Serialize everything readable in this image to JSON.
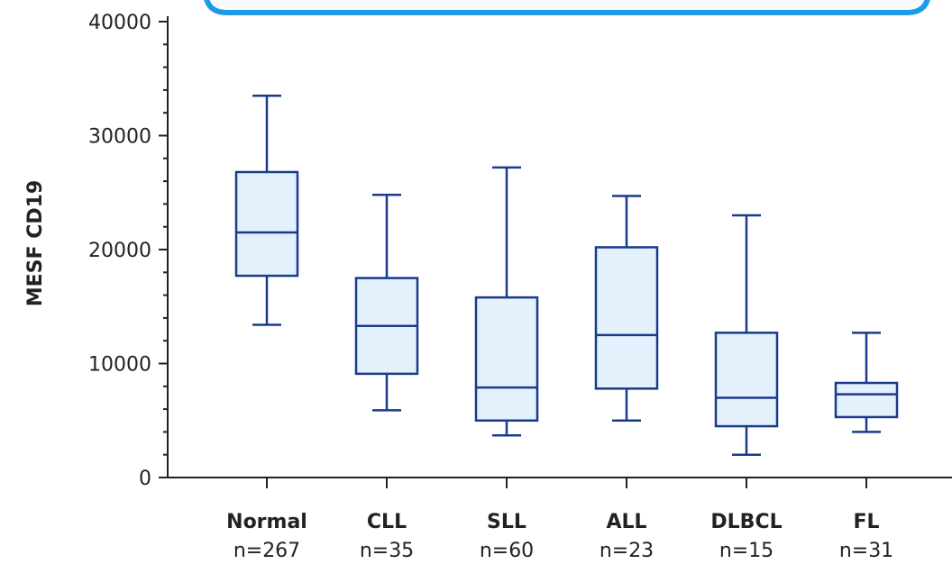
{
  "chart_data": {
    "type": "box",
    "title": "",
    "xlabel": "",
    "ylabel": "MESF CD19",
    "ylim": [
      0,
      40000
    ],
    "yticks": [
      0,
      10000,
      20000,
      30000,
      40000
    ],
    "grid": false,
    "colors": {
      "box_fill": "#e3f1fc",
      "box_stroke": "#1a3a8c",
      "callout_stroke": "#1e9be6",
      "axis": "#222222"
    },
    "categories": [
      "Normal",
      "CLL",
      "SLL",
      "ALL",
      "DLBCL",
      "FL"
    ],
    "sample_sizes": [
      "n=267",
      "n=35",
      "n=60",
      "n=23",
      "n=15",
      "n=31"
    ],
    "boxes": [
      {
        "category": "Normal",
        "whisker_low": 13400,
        "q1": 17700,
        "median": 21500,
        "q3": 26800,
        "whisker_high": 33500
      },
      {
        "category": "CLL",
        "whisker_low": 5900,
        "q1": 9100,
        "median": 13300,
        "q3": 17500,
        "whisker_high": 24800
      },
      {
        "category": "SLL",
        "whisker_low": 3700,
        "q1": 5000,
        "median": 7900,
        "q3": 15800,
        "whisker_high": 27200
      },
      {
        "category": "ALL",
        "whisker_low": 5000,
        "q1": 7800,
        "median": 12500,
        "q3": 20200,
        "whisker_high": 24700
      },
      {
        "category": "DLBCL",
        "whisker_low": 2000,
        "q1": 4500,
        "median": 7000,
        "q3": 12700,
        "whisker_high": 23000
      },
      {
        "category": "FL",
        "whisker_low": 4000,
        "q1": 5300,
        "median": 7300,
        "q3": 8300,
        "whisker_high": 12700
      }
    ]
  }
}
